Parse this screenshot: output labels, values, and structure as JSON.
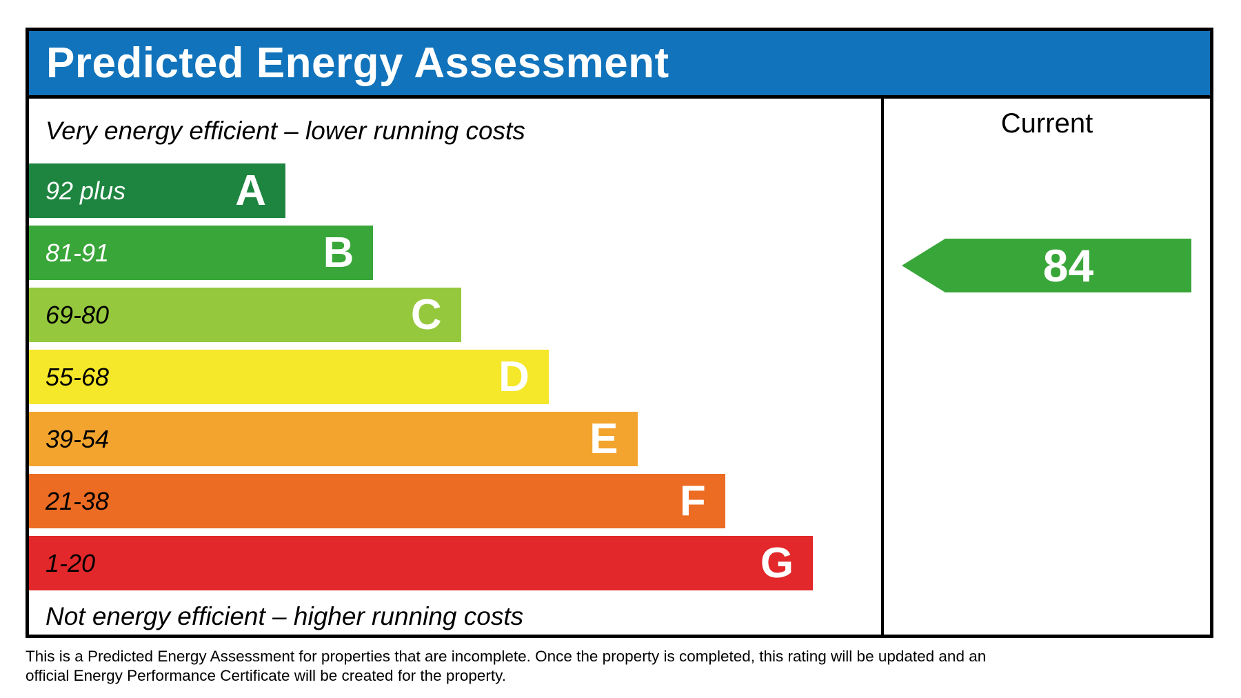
{
  "header": {
    "title": "Predicted Energy Assessment",
    "bg_color": "#1173bb"
  },
  "chart": {
    "top_label": "Very energy efficient – lower running costs",
    "bottom_label": "Not energy efficient – higher running costs",
    "bands": [
      {
        "letter": "A",
        "range": "92 plus",
        "color": "#1e8540",
        "text_color": "#ffffff",
        "width_pct": 30.1
      },
      {
        "letter": "B",
        "range": "81-91",
        "color": "#39a639",
        "text_color": "#ffffff",
        "width_pct": 40.4
      },
      {
        "letter": "C",
        "range": "69-80",
        "color": "#95c83d",
        "text_color": "#000000",
        "width_pct": 50.7
      },
      {
        "letter": "D",
        "range": "55-68",
        "color": "#f5e729",
        "text_color": "#000000",
        "width_pct": 61.0
      },
      {
        "letter": "E",
        "range": "39-54",
        "color": "#f3a42e",
        "text_color": "#000000",
        "width_pct": 71.4
      },
      {
        "letter": "F",
        "range": "21-38",
        "color": "#ec6c23",
        "text_color": "#000000",
        "width_pct": 81.7
      },
      {
        "letter": "G",
        "range": "1-20",
        "color": "#e2282a",
        "text_color": "#000000",
        "width_pct": 92.0
      }
    ]
  },
  "current": {
    "label": "Current",
    "value": "84",
    "band": "B",
    "arrow_color": "#39a639"
  },
  "footer": {
    "line1": "This is a Predicted Energy Assessment for properties that are incomplete. Once the property is completed, this rating will be updated and an",
    "line2": "official Energy Performance Certificate will be created for the property."
  },
  "chart_data": {
    "type": "bar",
    "title": "Predicted Energy Assessment",
    "categories": [
      "A",
      "B",
      "C",
      "D",
      "E",
      "F",
      "G"
    ],
    "band_ranges": [
      "92 plus",
      "81-91",
      "69-80",
      "55-68",
      "39-54",
      "21-38",
      "1-20"
    ],
    "band_colors": [
      "#1e8540",
      "#39a639",
      "#95c83d",
      "#f5e729",
      "#f3a42e",
      "#ec6c23",
      "#e2282a"
    ],
    "bar_width_pct": [
      30.1,
      40.4,
      50.7,
      61.0,
      71.4,
      81.7,
      92.0
    ],
    "current_rating": 84,
    "current_band": "B",
    "annotations": [
      "Very energy efficient – lower running costs",
      "Not energy efficient – higher running costs"
    ],
    "legend_position": "right-column-current",
    "grid": false
  }
}
